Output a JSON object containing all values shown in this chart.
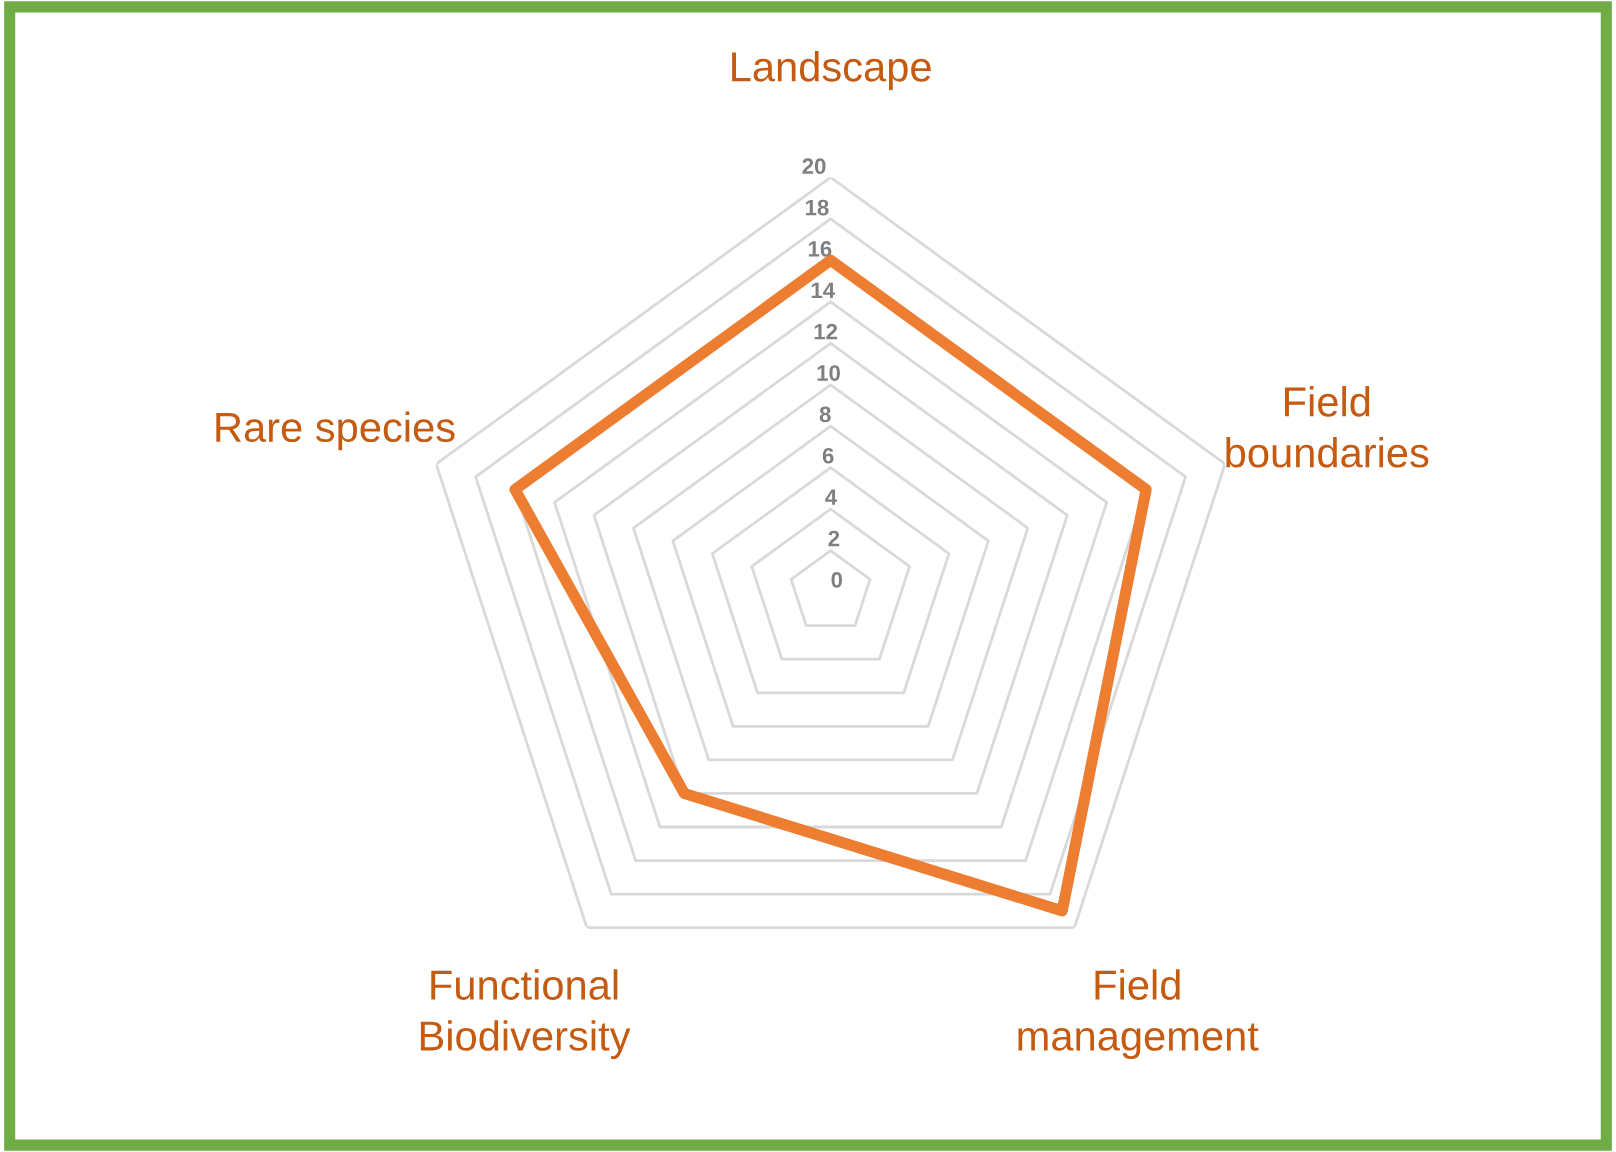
{
  "chart_data": {
    "type": "radar",
    "categories": [
      "Landscape",
      "Field boundaries",
      "Field management",
      "Functional Biodiversity",
      "Rare species"
    ],
    "series": [
      {
        "color": "#ed7d31",
        "values": [
          16,
          16,
          19,
          12,
          16
        ]
      }
    ],
    "ylim": [
      0,
      20
    ],
    "yticks": [
      0,
      2,
      4,
      6,
      8,
      10,
      12,
      14,
      16,
      18,
      20
    ],
    "grid": true
  }
}
